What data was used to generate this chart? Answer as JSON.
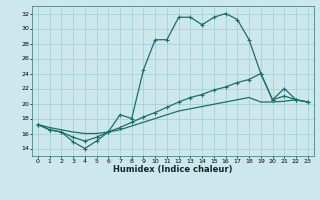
{
  "xlabel": "Humidex (Indice chaleur)",
  "bg_color": "#cce8ec",
  "grid_color": "#9ecdd1",
  "line_color": "#1a7068",
  "xlim": [
    -0.5,
    23.5
  ],
  "ylim": [
    13,
    33
  ],
  "xticks": [
    0,
    1,
    2,
    3,
    4,
    5,
    6,
    7,
    8,
    9,
    10,
    11,
    12,
    13,
    14,
    15,
    16,
    17,
    18,
    19,
    20,
    21,
    22,
    23
  ],
  "yticks": [
    14,
    16,
    18,
    20,
    22,
    24,
    26,
    28,
    30,
    32
  ],
  "line1_x": [
    0,
    1,
    2,
    3,
    4,
    5,
    6,
    7,
    8,
    9,
    10,
    11,
    12,
    13,
    14,
    15,
    16,
    17,
    18,
    19,
    20,
    21,
    22,
    23
  ],
  "line1_y": [
    17.2,
    16.5,
    16.2,
    14.9,
    14.0,
    15.0,
    16.2,
    18.5,
    18.0,
    24.5,
    28.5,
    28.5,
    31.5,
    31.5,
    30.5,
    31.5,
    32.0,
    31.2,
    28.5,
    24.0,
    20.5,
    22.0,
    20.5,
    20.2
  ],
  "line2_x": [
    0,
    1,
    2,
    3,
    4,
    5,
    6,
    7,
    8,
    9,
    10,
    11,
    12,
    13,
    14,
    15,
    16,
    17,
    18,
    19,
    20,
    21,
    22,
    23
  ],
  "line2_y": [
    17.2,
    16.5,
    16.2,
    15.5,
    15.0,
    15.5,
    16.2,
    16.8,
    17.5,
    18.2,
    18.8,
    19.5,
    20.2,
    20.8,
    21.2,
    21.8,
    22.2,
    22.8,
    23.2,
    24.0,
    20.5,
    21.0,
    20.5,
    20.2
  ],
  "line3_x": [
    0,
    1,
    2,
    3,
    4,
    5,
    6,
    7,
    8,
    9,
    10,
    11,
    12,
    13,
    14,
    15,
    16,
    17,
    18,
    19,
    20,
    21,
    22,
    23
  ],
  "line3_y": [
    17.2,
    16.8,
    16.5,
    16.2,
    16.0,
    16.0,
    16.2,
    16.5,
    17.0,
    17.5,
    18.0,
    18.5,
    19.0,
    19.3,
    19.6,
    19.9,
    20.2,
    20.5,
    20.8,
    20.2,
    20.2,
    20.3,
    20.5,
    20.2
  ]
}
